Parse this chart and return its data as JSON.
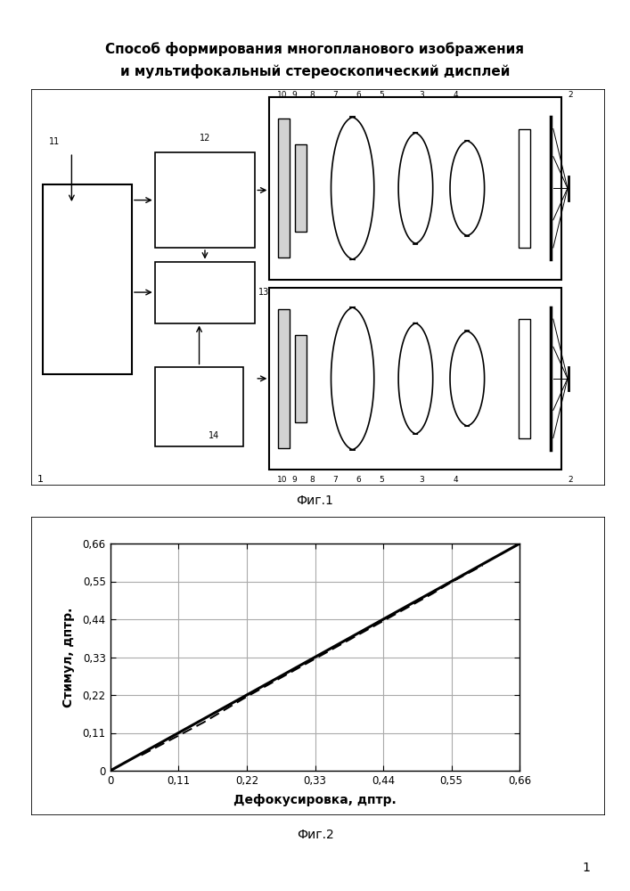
{
  "title_line1": "Способ формирования многопланового изображения",
  "title_line2": "и мультифокальный стереоскопический дисплей",
  "fig1_label": "Фиг.1",
  "fig2_label": "Фиг.2",
  "page_number": "1",
  "graph_xlabel": "Дефокусировка, дптр.",
  "graph_ylabel": "Стимул, дптр.",
  "graph_xticks": [
    0,
    0.11,
    0.22,
    0.33,
    0.44,
    0.55,
    0.66
  ],
  "graph_yticks": [
    0,
    0.11,
    0.22,
    0.33,
    0.44,
    0.55,
    0.66
  ],
  "graph_xlim": [
    0,
    0.66
  ],
  "graph_ylim": [
    0,
    0.66
  ],
  "solid_line": [
    [
      0,
      0
    ],
    [
      0.66,
      0.66
    ]
  ],
  "dashed_line": [
    [
      0.05,
      0.045
    ],
    [
      0.15,
      0.14
    ],
    [
      0.22,
      0.215
    ],
    [
      0.33,
      0.325
    ],
    [
      0.44,
      0.435
    ],
    [
      0.52,
      0.515
    ],
    [
      0.55,
      0.548
    ],
    [
      0.6,
      0.596
    ]
  ],
  "background_color": "#ffffff",
  "line_color": "#000000",
  "grid_color": "#aaaaaa"
}
